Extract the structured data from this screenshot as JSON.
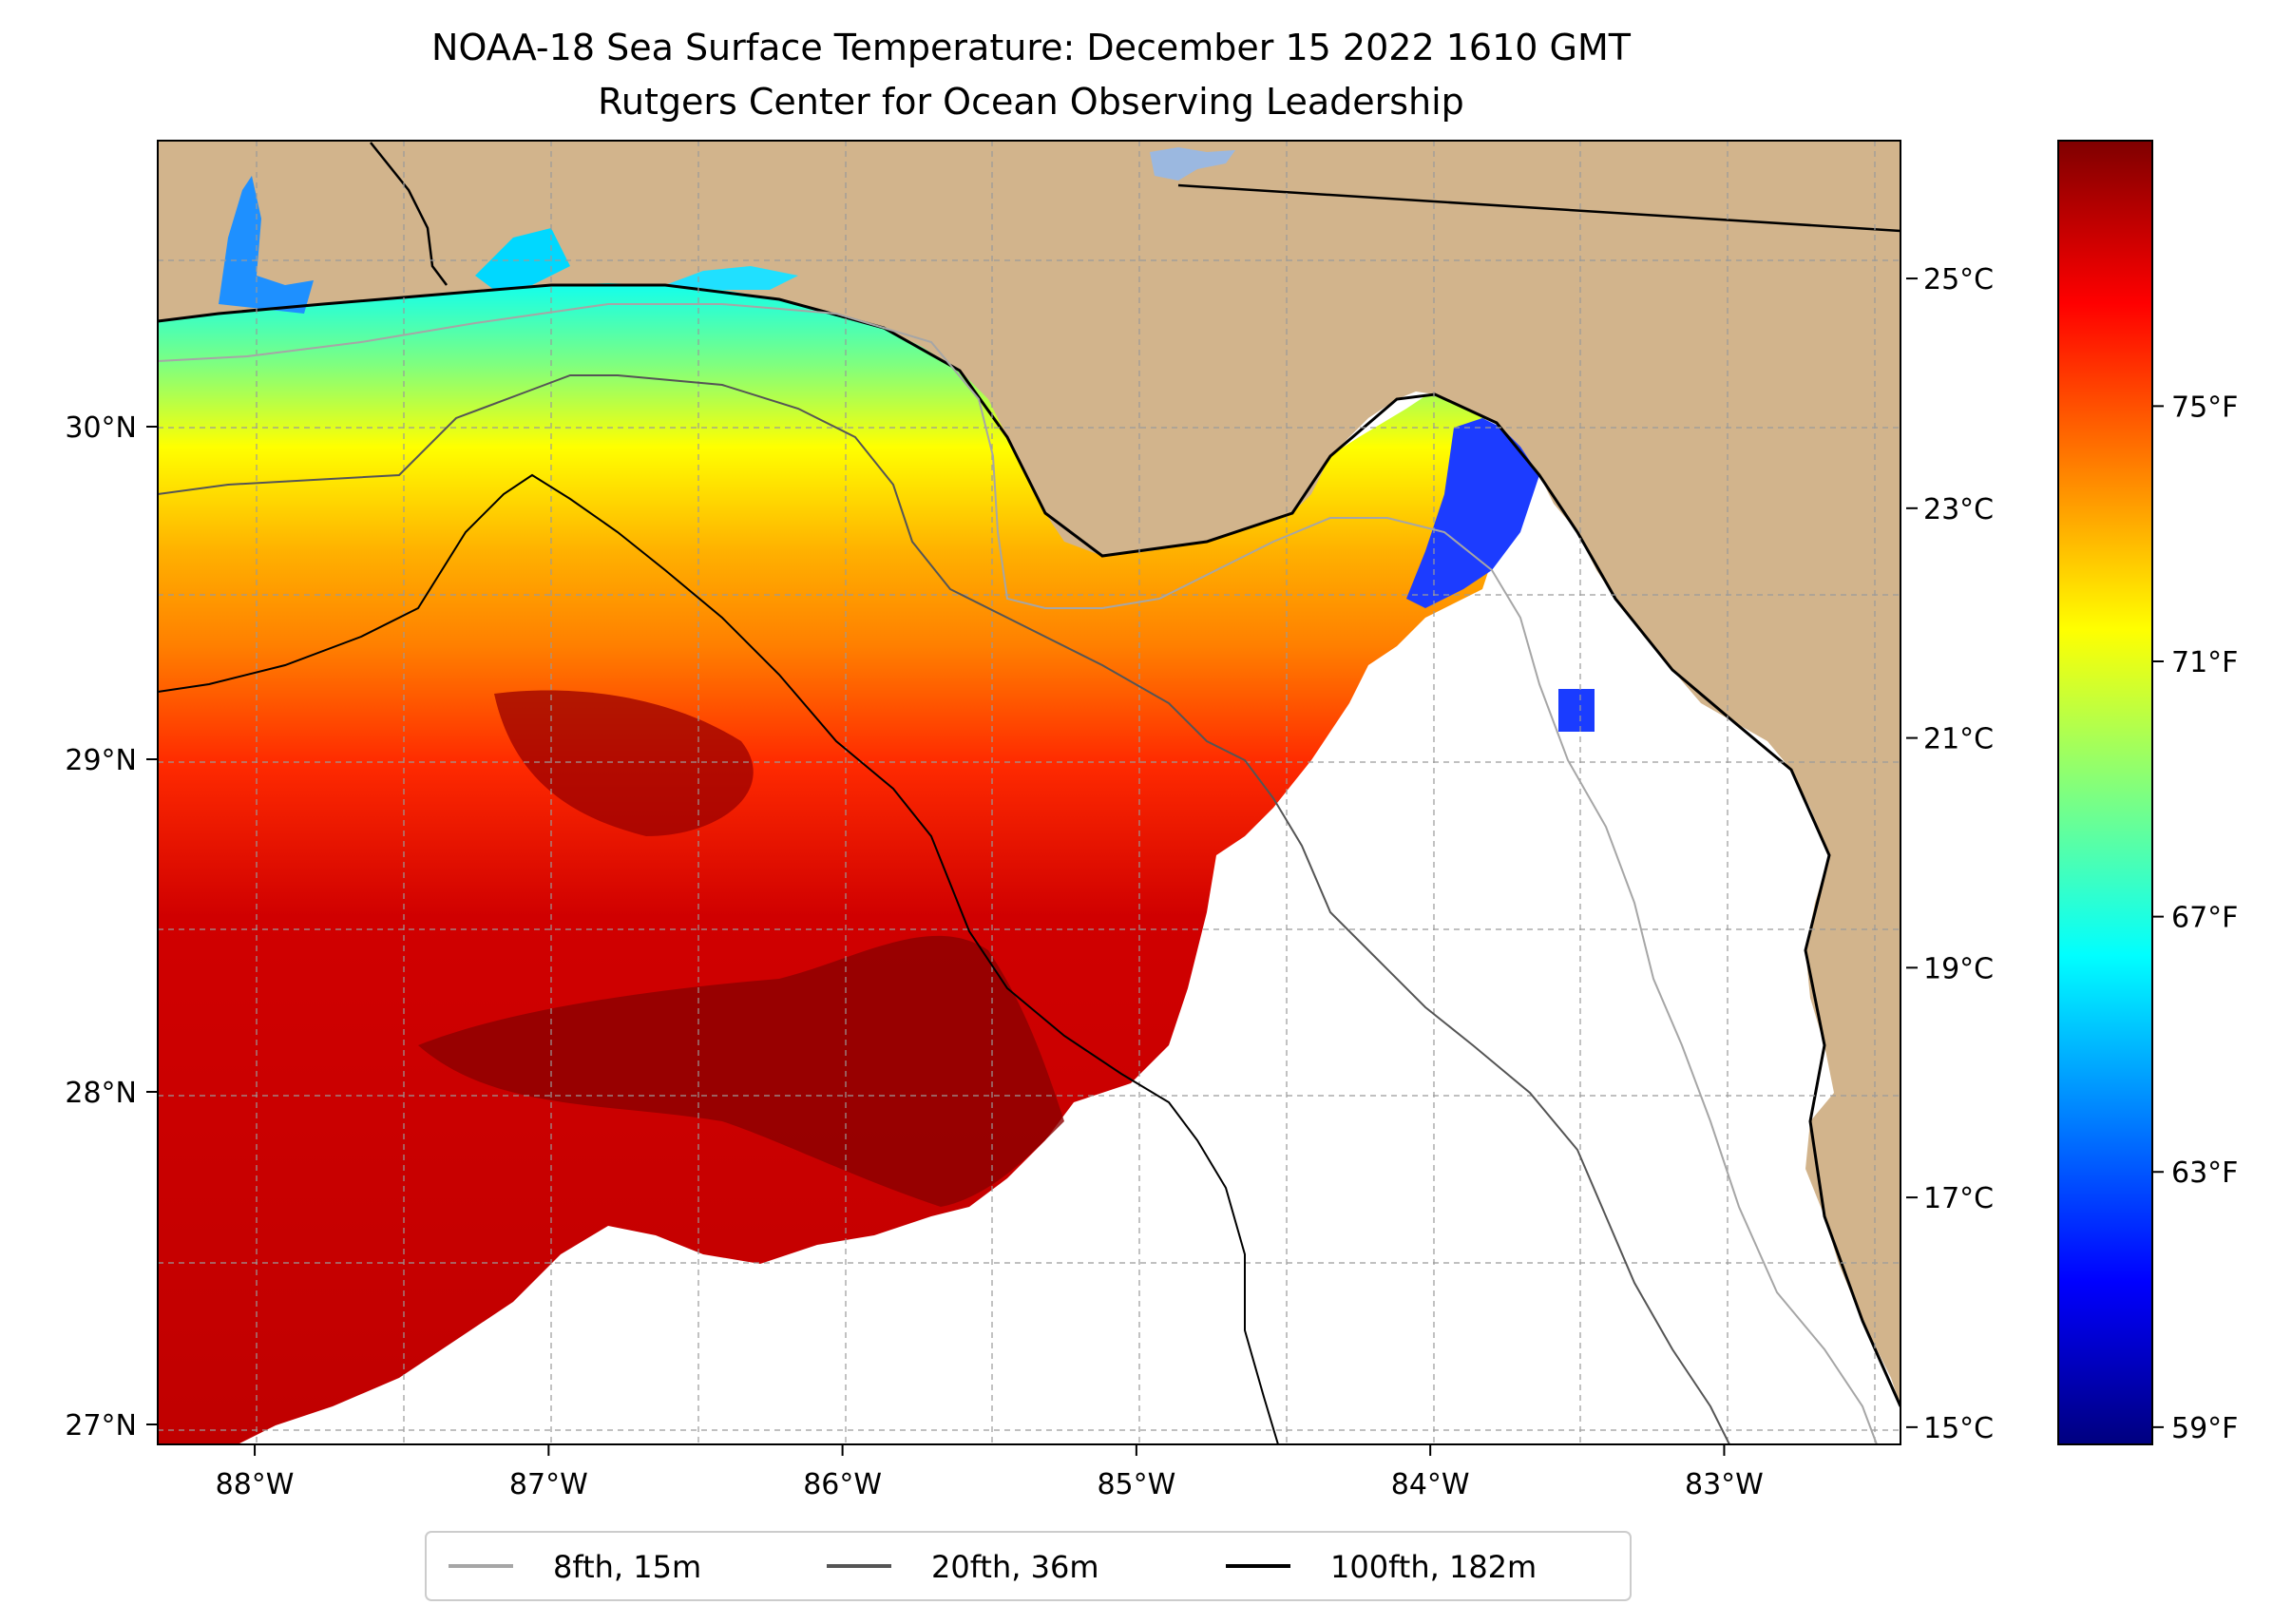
{
  "title": {
    "line1": "NOAA-18 Sea Surface Temperature: December 15 2022 1610 GMT",
    "line2": "Rutgers Center for Ocean Observing Leadership"
  },
  "map": {
    "lon_range": [
      -88.33,
      -82.4
    ],
    "lat_range": [
      26.94,
      30.86
    ],
    "gridlines": true,
    "land_color": "#d2b48c",
    "no_data_color": "#ffffff",
    "lon_ticks": [
      {
        "value": -88,
        "label": "88°W"
      },
      {
        "value": -87,
        "label": "87°W"
      },
      {
        "value": -86,
        "label": "86°W"
      },
      {
        "value": -85,
        "label": "85°W"
      },
      {
        "value": -84,
        "label": "84°W"
      },
      {
        "value": -83,
        "label": "83°W"
      }
    ],
    "lat_ticks": [
      {
        "value": 30,
        "label": "30°N"
      },
      {
        "value": 29,
        "label": "29°N"
      },
      {
        "value": 28,
        "label": "28°N"
      },
      {
        "value": 27,
        "label": "27°N"
      }
    ]
  },
  "colorbar": {
    "colormap": "jet",
    "celsius_ticks": [
      {
        "value": 25,
        "label": "25°C"
      },
      {
        "value": 23,
        "label": "23°C"
      },
      {
        "value": 21,
        "label": "21°C"
      },
      {
        "value": 19,
        "label": "19°C"
      },
      {
        "value": 17,
        "label": "17°C"
      },
      {
        "value": 15,
        "label": "15°C"
      }
    ],
    "fahrenheit_ticks": [
      {
        "value": 75,
        "label": "75°F"
      },
      {
        "value": 71,
        "label": "71°F"
      },
      {
        "value": 67,
        "label": "67°F"
      },
      {
        "value": 63,
        "label": "63°F"
      },
      {
        "value": 59,
        "label": "59°F"
      }
    ],
    "colors": [
      "#00007f",
      "#0000ff",
      "#007fff",
      "#00ffff",
      "#7fff7f",
      "#ffff00",
      "#ff7f00",
      "#ff0000",
      "#7f0000"
    ]
  },
  "legend": {
    "items": [
      {
        "label": "8fth, 15m",
        "color": "#a6a6a6"
      },
      {
        "label": "20fth, 36m",
        "color": "#555555"
      },
      {
        "label": "100fth, 182m",
        "color": "#000000"
      }
    ]
  }
}
